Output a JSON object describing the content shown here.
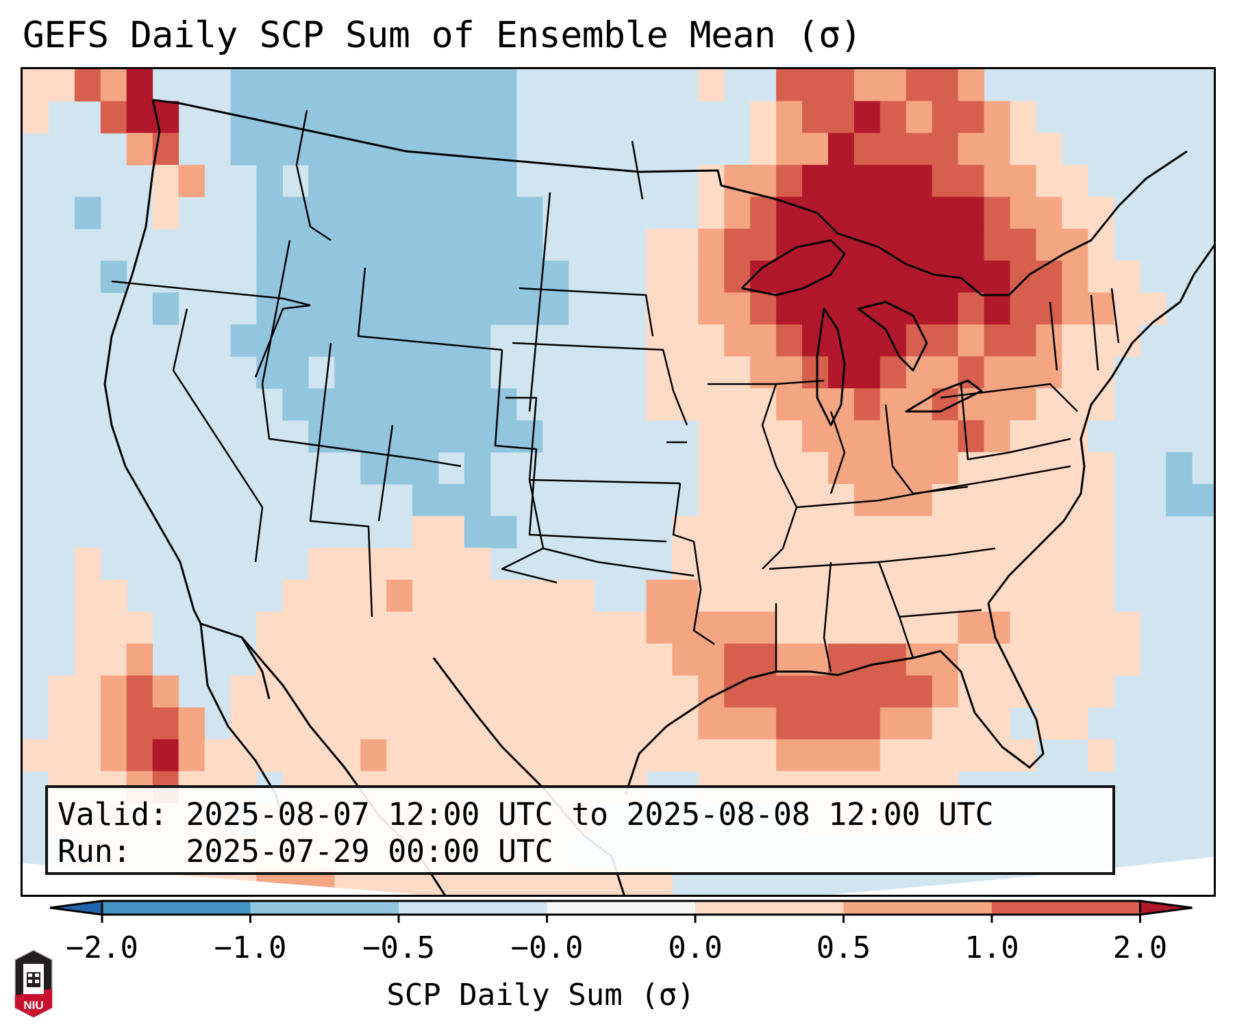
{
  "title": "GEFS Daily SCP Sum of Ensemble Mean (σ)",
  "info": {
    "valid_line": "Valid: 2025-08-07 12:00 UTC to 2025-08-08 12:00 UTC",
    "run_line": "Run:   2025-07-29 00:00 UTC"
  },
  "logo": {
    "text": "NIU",
    "icon": "niu-logo-icon"
  },
  "chart_data": {
    "type": "heatmap",
    "title": "GEFS Daily SCP Sum of Ensemble Mean (σ)",
    "colorbar": {
      "label": "SCP Daily Sum (σ)",
      "extend": "both",
      "ticks": [
        "−2.0",
        "−1.0",
        "−0.5",
        "−0.0",
        "0.0",
        "0.5",
        "1.0",
        "2.0"
      ],
      "bounds": [
        -2.0,
        -1.0,
        -0.5,
        -0.0,
        0.0,
        0.5,
        1.0,
        2.0
      ],
      "colors": [
        "#2166ac",
        "#4393c3",
        "#92c5de",
        "#d1e5f0",
        "#f7f7f7",
        "#fddbc7",
        "#f4a582",
        "#d6604d",
        "#b2182b"
      ]
    },
    "region": "Contiguous United States (Lambert conformal)",
    "grid_note": "Coarse approximation of the gridded field; each value is a color-class index into colorbar.colors",
    "grid": [
      "5576833322222222222333333353377766776333333333",
      "5337883322222222222333333333567787677653333333",
      "3333673322222222222333333333566877776655333333",
      "3333356332322222222333333356678888877665533333",
      "3323353332222222222233333356788888888766553333",
      "3333333332222222222233335567788888888776653333",
      "3332333332222222222223335567888888888877655333",
      "3333323332222222222223335566788888887877665533",
      "3333333322222222223333335556678888776776555333",
      "3333333332232222223333335555667887667666553333",
      "3333333333222222222333335555566676676665553333",
      "3333333333322222222233333355556666667655533333",
      "3333333333333222323333333355555666665555553323",
      "3333333333333332223333333355555566655555553322",
      "3333333333333335522333333555555555555555553333",
      "3353333333355555553333333555555555555555553333",
      "3355333333555565555555336655555555555555553333",
      "3355533335555555555555556666655555556655555333",
      "3355633335555555555555555667766777665555555333",
      "3556763355555555555555555567777777765555553333",
      "3556776355555555555555555566677776655535533333",
      "5556786555555655555555555555566665555553353333",
      "3555675553555555555555553355555555553333333333",
      "3555555535555555555555333333335555555333333333",
      "3355555555555555555553333333333333333333333333",
      "3335555556665555555555555333333333333333333333"
    ]
  }
}
